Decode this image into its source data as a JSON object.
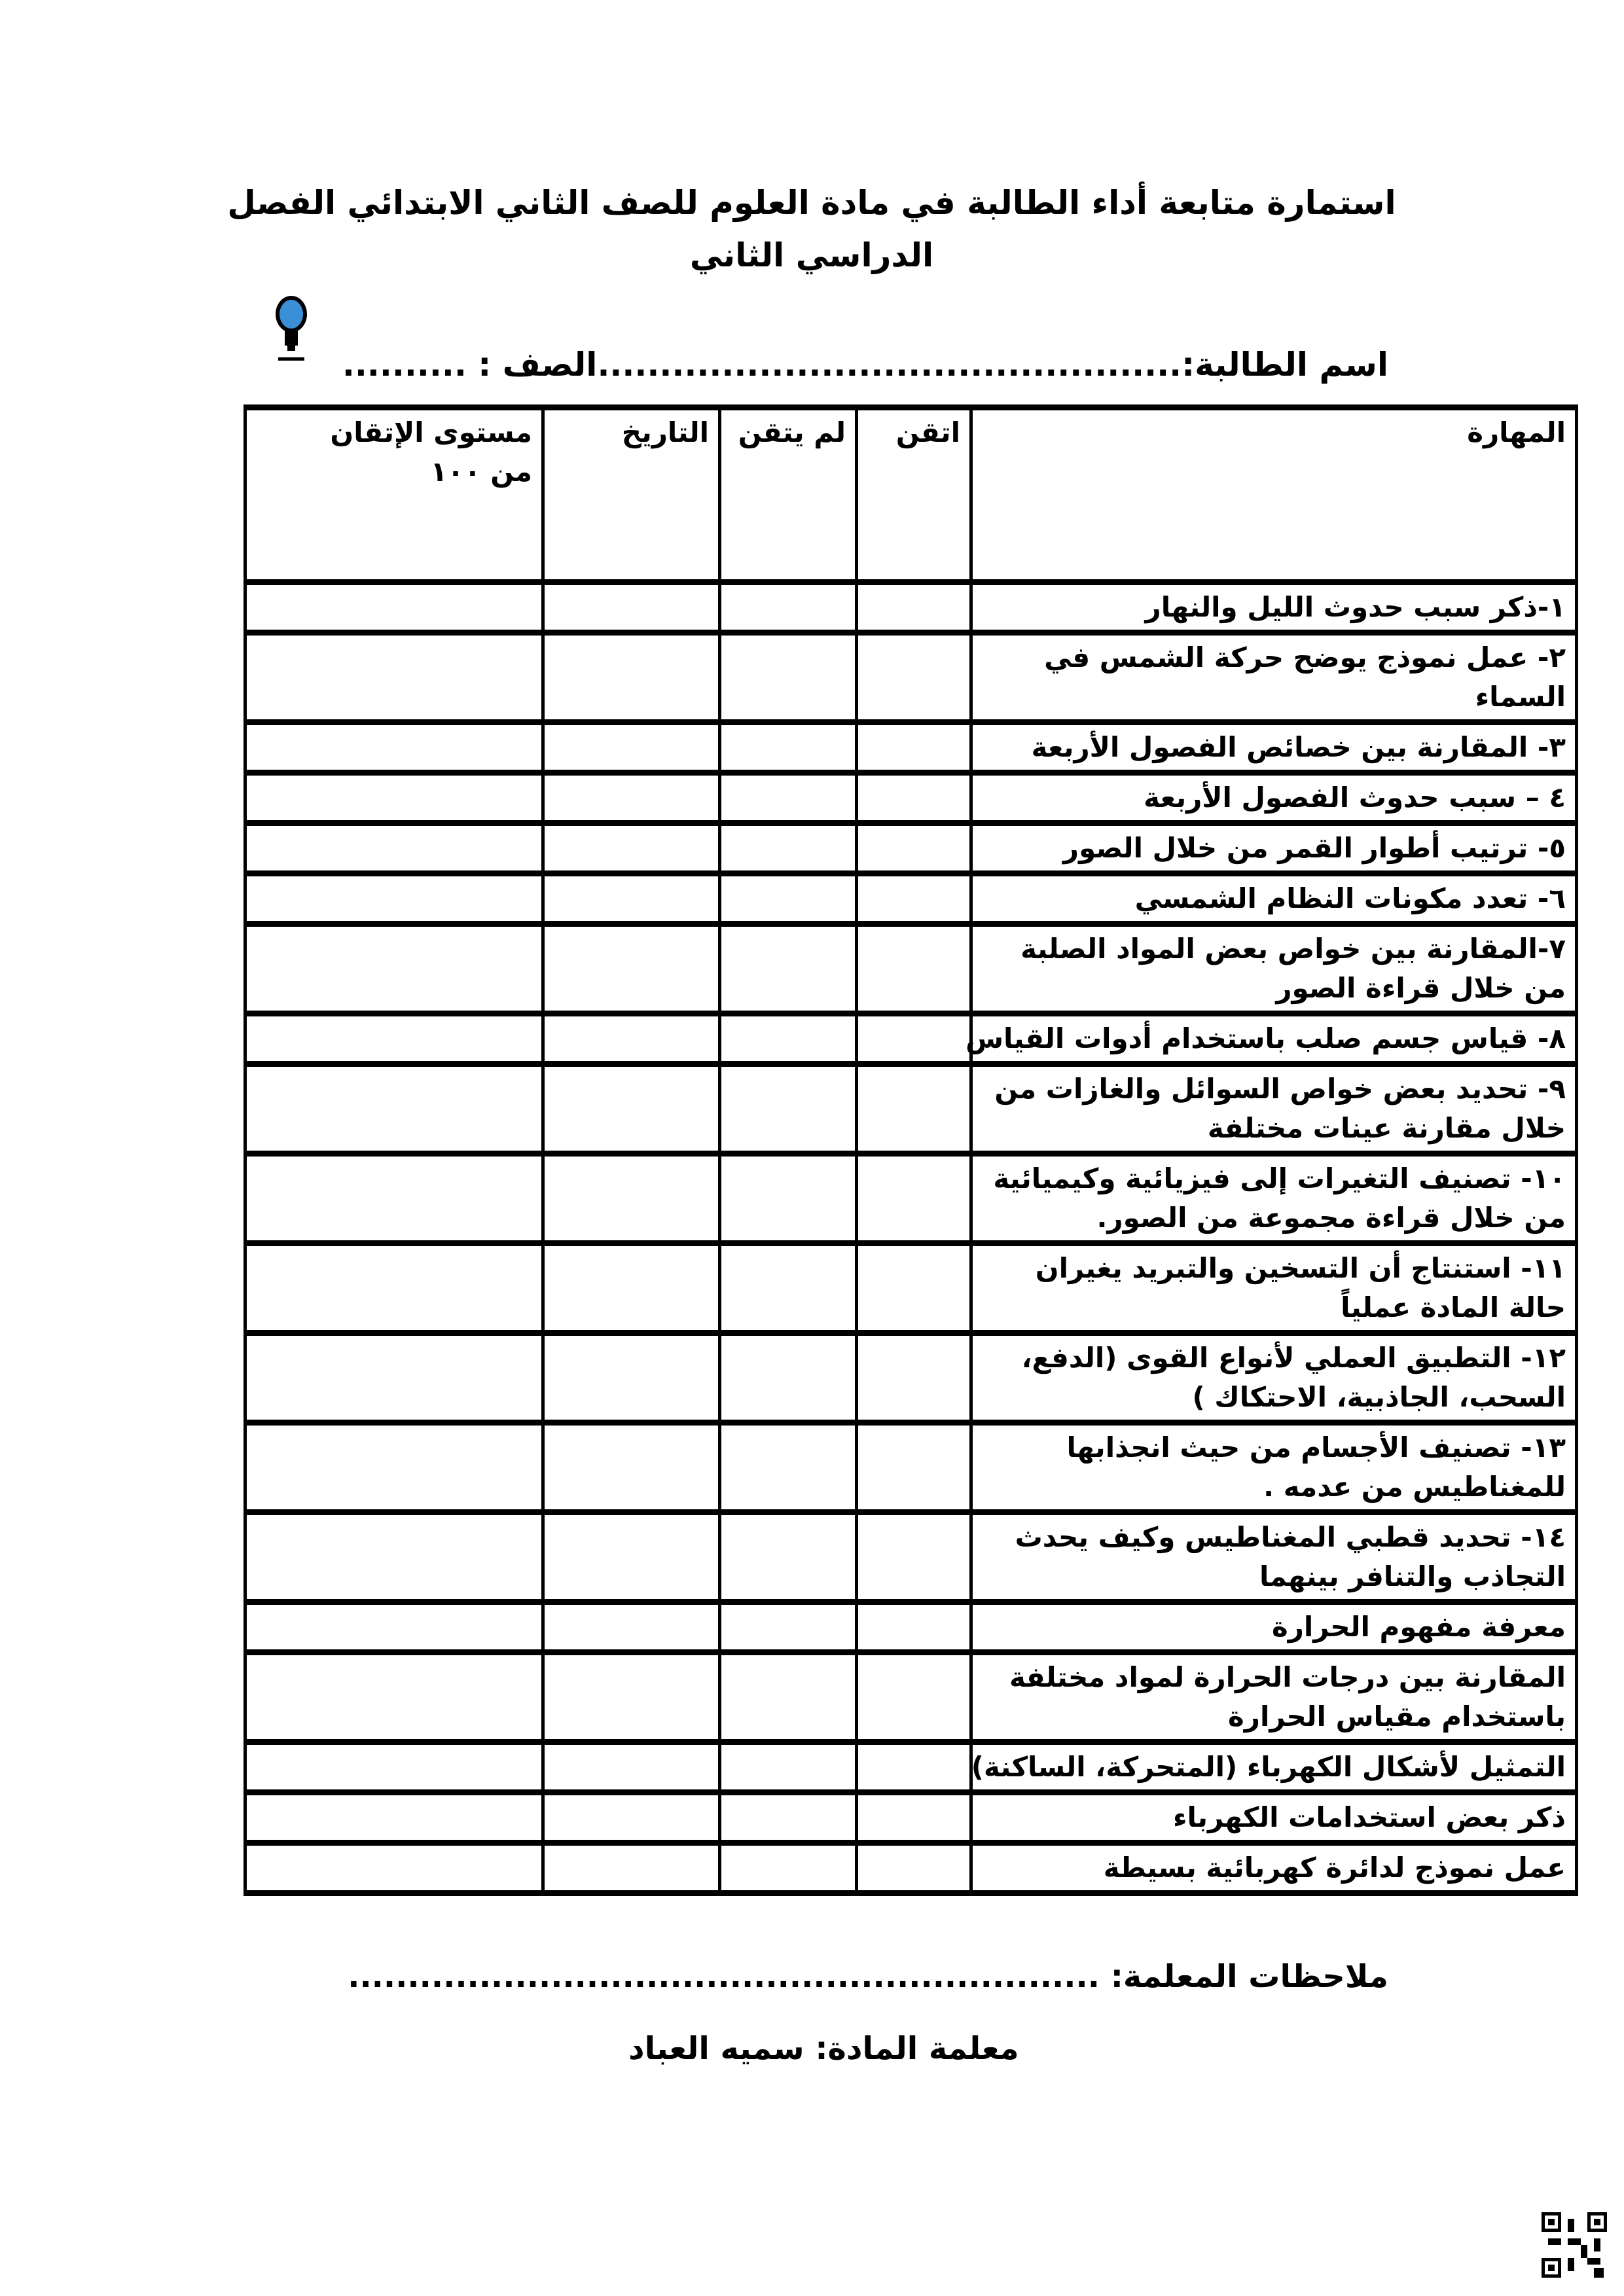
{
  "title": {
    "line1": "استمارة متابعة أداء الطالبة في مادة العلوم للصف الثاني الابتدائي الفصل",
    "line2": "الدراسي الثاني"
  },
  "student_line": {
    "name_label": "اسم الطالبة:",
    "name_dots": "...............................................",
    "class_label": "الصف :",
    "class_dots": ".........."
  },
  "table": {
    "headers": {
      "skill": "المهارة",
      "mastered": "اتقن",
      "not_mastered": "لم يتقن",
      "date": "التاريخ",
      "level_line1": "مستوى الإتقان",
      "level_line2": "من ١٠٠"
    },
    "rows": [
      [
        "١-ذكر سبب حدوث الليل والنهار"
      ],
      [
        "٢- عمل نموذج يوضح حركة الشمس في",
        "السماء"
      ],
      [
        "٣- المقارنة بين خصائص الفصول الأربعة"
      ],
      [
        "٤ – سبب حدوث الفصول الأربعة"
      ],
      [
        "٥- ترتيب أطوار القمر من خلال الصور"
      ],
      [
        "٦- تعدد مكونات النظام الشمسي"
      ],
      [
        "٧-المقارنة بين خواص بعض المواد الصلبة",
        "من خلال قراءة الصور"
      ],
      [
        "٨- قياس جسم صلب باستخدام أدوات القياس"
      ],
      [
        "٩- تحديد بعض خواص السوائل والغازات من",
        "خلال مقارنة عينات مختلفة"
      ],
      [
        "١٠- تصنيف التغيرات إلى فيزيائية وكيميائية",
        "من خلال قراءة مجموعة من الصور."
      ],
      [
        "١١- استنتاج أن التسخين والتبريد يغيران",
        "حالة المادة عملياً"
      ],
      [
        "١٢- التطبيق العملي لأنواع القوى (الدفع،",
        "السحب، الجاذبية، الاحتكاك )"
      ],
      [
        "١٣- تصنيف الأجسام من حيث انجذابها",
        "للمغناطيس من عدمه ."
      ],
      [
        "١٤- تحديد قطبي المغناطيس وكيف يحدث",
        "التجاذب والتنافر بينهما"
      ],
      [
        "معرفة مفهوم الحرارة"
      ],
      [
        "المقارنة بين درجات الحرارة لمواد مختلفة",
        "باستخدام مقياس الحرارة"
      ],
      [
        "التمثيل لأشكال الكهرباء (المتحركة، الساكنة)"
      ],
      [
        "ذكر بعض استخدامات الكهرباء"
      ],
      [
        "عمل نموذج لدائرة كهربائية بسيطة"
      ]
    ]
  },
  "notes": {
    "label": "ملاحظات المعلمة:",
    "dots": "..............................................................."
  },
  "teacher": {
    "text": "معلمة المادة: سميه العباد"
  },
  "icons": {
    "logo": "lightbulb-logo",
    "qr": "qr-code"
  },
  "colors": {
    "logo_blue": "#3a8fd6"
  }
}
